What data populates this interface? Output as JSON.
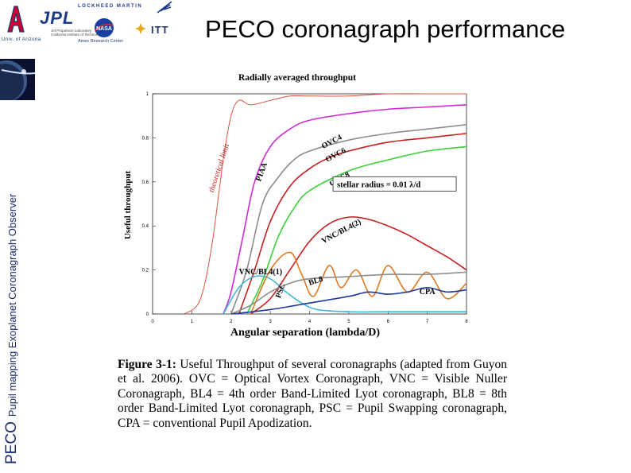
{
  "slide": {
    "title": "PECO coronagraph performance",
    "side_label_main": "PECO",
    "side_label_sub": "Pupil mapping Exoplanet Coronagraph Observer"
  },
  "logos": {
    "ua_caption": "Univ. of Arizona",
    "jpl": "JPL",
    "jpl_sub_1": "Jet Propulsion Laboratory",
    "jpl_sub_2": "California Institute of Technology",
    "lockheed": "LOCKHEED MARTIN",
    "nasa": "NASA",
    "ames": "Ames Research Center",
    "itt": "ITT"
  },
  "figure": {
    "caption_label": "Figure 3-1:",
    "caption_text": " Useful Throughput of several coronagraphs (adapted from Guyon et al. 2006). OVC = Optical Vortex Coronagraph, VNC = Visible Nuller Coronagraph, BL4 = 4th order Band-Limited Lyot coronagraph, BL8 = 8th order Band-Limited Lyot coronagraph, PSC = Pupil Swapping coronagraph, CPA = conventional Pupil Apodization."
  },
  "chart_data": {
    "type": "line",
    "title": "Radially averaged throughput",
    "xlabel": "Angular separation (lambda/D)",
    "ylabel": "Useful throughput",
    "xlim": [
      0,
      8
    ],
    "ylim": [
      0,
      1
    ],
    "x_ticks": [
      "0",
      "1",
      "2",
      "3",
      "4",
      "5",
      "6",
      "7",
      "8"
    ],
    "y_ticks": [
      "0",
      "0.2",
      "0.4",
      "0.6",
      "0.8",
      "1"
    ],
    "annotation": "stellar radius = 0.01  λ/d",
    "series": [
      {
        "name": "theoretical limit",
        "color": "#e0503c",
        "x": [
          0.8,
          1.2,
          1.5,
          1.8,
          2.0,
          2.2,
          2.5,
          3.0,
          3.5,
          4.0,
          5.0,
          6.0,
          7.0,
          8.0
        ],
        "y": [
          0.0,
          0.06,
          0.3,
          0.7,
          0.9,
          0.97,
          0.95,
          0.97,
          0.99,
          0.99,
          0.99,
          1.0,
          1.0,
          1.0
        ]
      },
      {
        "name": "PIAA",
        "color": "#d02ad8",
        "x": [
          1.8,
          2.0,
          2.3,
          2.6,
          3.0,
          3.5,
          4.0,
          5.0,
          6.0,
          7.0,
          8.0
        ],
        "y": [
          0.0,
          0.1,
          0.35,
          0.6,
          0.76,
          0.84,
          0.88,
          0.91,
          0.93,
          0.94,
          0.95
        ]
      },
      {
        "name": "OVC4",
        "color": "#8c8c8c",
        "x": [
          2.0,
          2.4,
          2.8,
          3.2,
          3.6,
          4.0,
          5.0,
          6.0,
          7.0,
          8.0
        ],
        "y": [
          0.0,
          0.2,
          0.5,
          0.62,
          0.7,
          0.74,
          0.79,
          0.82,
          0.84,
          0.86
        ]
      },
      {
        "name": "OVC6",
        "color": "#c81e1e",
        "x": [
          2.2,
          2.6,
          3.0,
          3.5,
          4.0,
          4.5,
          5.0,
          6.0,
          7.0,
          8.0
        ],
        "y": [
          0.0,
          0.2,
          0.42,
          0.58,
          0.66,
          0.71,
          0.74,
          0.78,
          0.8,
          0.82
        ]
      },
      {
        "name": "OVC8",
        "color": "#3ccf3c",
        "x": [
          2.4,
          2.8,
          3.2,
          3.6,
          4.0,
          5.0,
          6.0,
          7.0,
          8.0
        ],
        "y": [
          0.0,
          0.15,
          0.35,
          0.48,
          0.56,
          0.65,
          0.7,
          0.74,
          0.76
        ]
      },
      {
        "name": "VNC/BL4(2)",
        "color": "#c81e1e",
        "x": [
          2.5,
          3.0,
          3.5,
          4.0,
          4.5,
          5.0,
          5.5,
          6.0,
          6.5,
          7.0,
          7.5,
          8.0
        ],
        "y": [
          0.0,
          0.07,
          0.2,
          0.33,
          0.41,
          0.44,
          0.43,
          0.4,
          0.36,
          0.31,
          0.26,
          0.2
        ]
      },
      {
        "name": "VNC/BL4(1)",
        "color": "#40b8d8",
        "x": [
          1.8,
          2.2,
          2.6,
          3.0,
          3.4,
          3.8,
          4.2,
          5.0,
          6.0,
          7.0,
          8.0
        ],
        "y": [
          0.0,
          0.12,
          0.17,
          0.16,
          0.1,
          0.05,
          0.02,
          0.01,
          0.01,
          0.01,
          0.01
        ]
      },
      {
        "name": "BL8",
        "color": "#e07820",
        "x": [
          2.5,
          3.0,
          3.5,
          3.8,
          4.1,
          4.5,
          4.8,
          5.2,
          5.6,
          6.0,
          6.5,
          7.0,
          7.5,
          8.0
        ],
        "y": [
          0.0,
          0.2,
          0.28,
          0.18,
          0.08,
          0.22,
          0.12,
          0.2,
          0.08,
          0.22,
          0.1,
          0.19,
          0.07,
          0.14
        ]
      },
      {
        "name": "PSC",
        "color": "#8c8c8c",
        "x": [
          2.0,
          2.5,
          3.0,
          3.5,
          4.0,
          5.0,
          6.0,
          7.0,
          8.0
        ],
        "y": [
          0.0,
          0.04,
          0.1,
          0.14,
          0.16,
          0.17,
          0.18,
          0.18,
          0.19
        ]
      },
      {
        "name": "CPA",
        "color": "#1a3aa0",
        "x": [
          2.0,
          3.0,
          4.0,
          5.0,
          5.5,
          6.0,
          6.5,
          7.0,
          7.5,
          8.0
        ],
        "y": [
          0.0,
          0.02,
          0.05,
          0.08,
          0.1,
          0.09,
          0.1,
          0.12,
          0.1,
          0.11
        ]
      }
    ]
  }
}
